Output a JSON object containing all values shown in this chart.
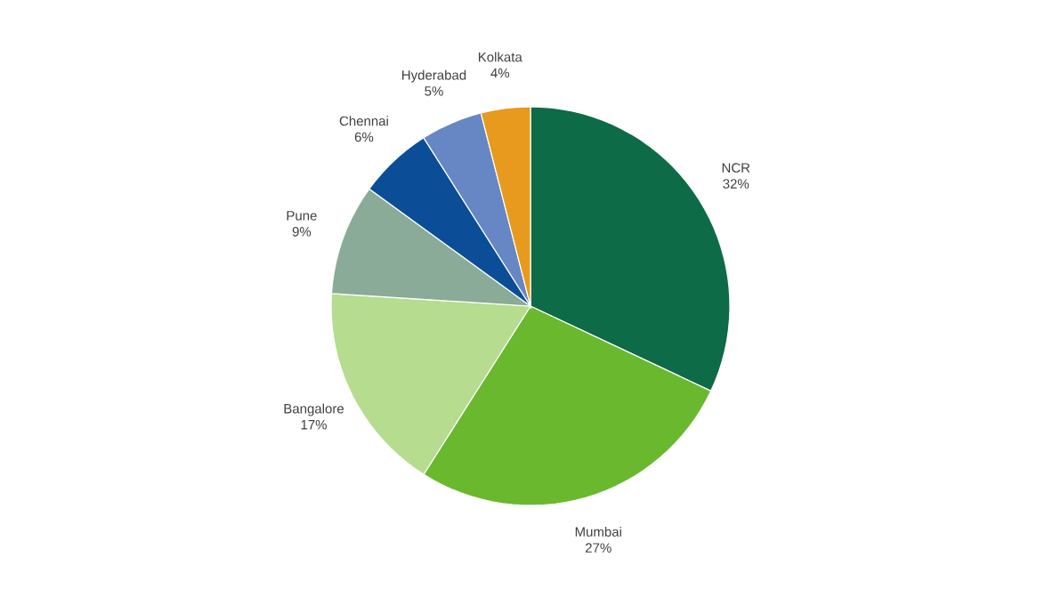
{
  "chart_data": {
    "type": "pie",
    "categories": [
      "NCR",
      "Mumbai",
      "Bangalore",
      "Pune",
      "Chennai",
      "Hyderabad",
      "Kolkata"
    ],
    "values": [
      32,
      27,
      17,
      9,
      6,
      5,
      4
    ],
    "value_labels": [
      "32%",
      "27%",
      "17%",
      "9%",
      "6%",
      "5%",
      "4%"
    ],
    "colors": [
      "#0d6b47",
      "#6ab82e",
      "#b5dc8f",
      "#8aab97",
      "#0b4e97",
      "#6687c3",
      "#e79a1d"
    ]
  }
}
